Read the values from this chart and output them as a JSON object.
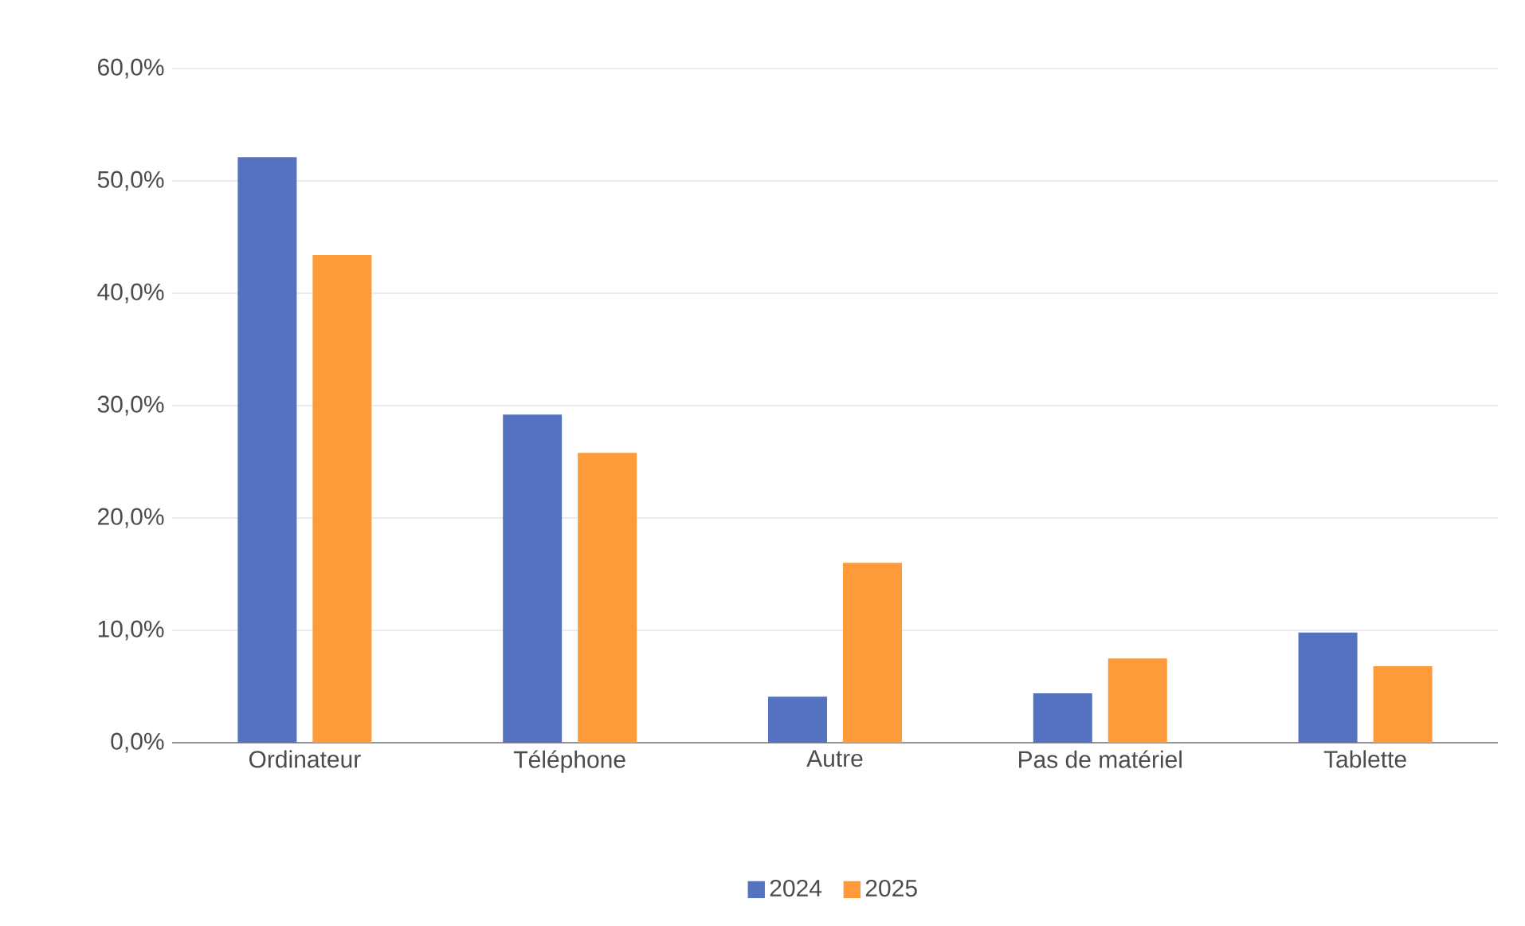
{
  "chart_data": {
    "type": "bar",
    "categories": [
      "Ordinateur",
      "Téléphone",
      "Autre",
      "Pas de matériel",
      "Tablette"
    ],
    "series": [
      {
        "name": "2024",
        "color": "#5472c0",
        "values": [
          52.1,
          29.2,
          4.1,
          4.4,
          9.8
        ]
      },
      {
        "name": "2025",
        "color": "#fe9a39",
        "values": [
          43.4,
          25.8,
          16.0,
          7.5,
          6.8
        ]
      }
    ],
    "ylim": [
      0,
      60
    ],
    "yticks": [
      {
        "value": 0,
        "label": "0,0%"
      },
      {
        "value": 10,
        "label": "10,0%"
      },
      {
        "value": 20,
        "label": "20,0%"
      },
      {
        "value": 30,
        "label": "30,0%"
      },
      {
        "value": 40,
        "label": "40,0%"
      },
      {
        "value": 50,
        "label": "50,0%"
      },
      {
        "value": 60,
        "label": "60,0%"
      }
    ],
    "grid": "y",
    "legend": "bottom"
  }
}
